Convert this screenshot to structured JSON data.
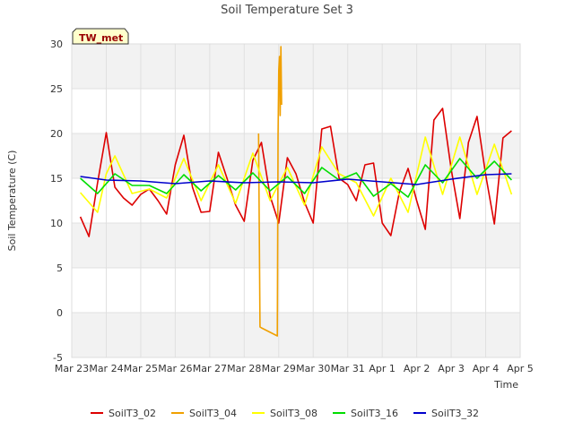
{
  "chart_data": {
    "type": "line",
    "title": "Soil Temperature Set 3",
    "xlabel": "Time",
    "ylabel": "Soil Temperature (C)",
    "ylim": [
      -5,
      30
    ],
    "yticks": [
      -5,
      0,
      5,
      10,
      15,
      20,
      25,
      30
    ],
    "xlim": [
      "2024-03-23",
      "2024-04-05"
    ],
    "xticks": [
      {
        "date": "2024-03-23",
        "label": "Mar 23"
      },
      {
        "date": "2024-03-24",
        "label": "Mar 24"
      },
      {
        "date": "2024-03-25",
        "label": "Mar 25"
      },
      {
        "date": "2024-03-26",
        "label": "Mar 26"
      },
      {
        "date": "2024-03-27",
        "label": "Mar 27"
      },
      {
        "date": "2024-03-28",
        "label": "Mar 28"
      },
      {
        "date": "2024-03-29",
        "label": "Mar 29"
      },
      {
        "date": "2024-03-30",
        "label": "Mar 30"
      },
      {
        "date": "2024-03-31",
        "label": "Mar 31"
      },
      {
        "date": "2024-04-01",
        "label": "Apr 1"
      },
      {
        "date": "2024-04-02",
        "label": "Apr 2"
      },
      {
        "date": "2024-04-03",
        "label": "Apr 3"
      },
      {
        "date": "2024-04-04",
        "label": "Apr 4"
      },
      {
        "date": "2024-04-05",
        "label": "Apr 5"
      }
    ],
    "grid": true,
    "banded_background": true,
    "legend_position": "bottom",
    "annotation": "TW_met",
    "series": [
      {
        "name": "SoilT3_02",
        "color": "#dd0000",
        "x": [
          "2024-03-23 06:00",
          "2024-03-23 12:00",
          "2024-03-23 18:00",
          "2024-03-24 00:00",
          "2024-03-24 03:00",
          "2024-03-24 06:00",
          "2024-03-24 12:00",
          "2024-03-24 18:00",
          "2024-03-25 00:00",
          "2024-03-25 06:00",
          "2024-03-25 12:00",
          "2024-03-25 18:00",
          "2024-03-26 00:00",
          "2024-03-26 06:00",
          "2024-03-26 12:00",
          "2024-03-26 18:00",
          "2024-03-27 00:00",
          "2024-03-27 06:00",
          "2024-03-27 12:00",
          "2024-03-27 18:00",
          "2024-03-28 00:00",
          "2024-03-28 06:00",
          "2024-03-28 12:00",
          "2024-03-28 18:00",
          "2024-03-29 00:00",
          "2024-03-29 06:00",
          "2024-03-29 12:00",
          "2024-03-29 18:00",
          "2024-03-30 00:00",
          "2024-03-30 06:00",
          "2024-03-30 12:00",
          "2024-03-30 18:00",
          "2024-03-31 00:00",
          "2024-03-31 06:00",
          "2024-03-31 12:00",
          "2024-03-31 18:00",
          "2024-04-01 00:00",
          "2024-04-01 06:00",
          "2024-04-01 12:00",
          "2024-04-01 18:00",
          "2024-04-02 00:00",
          "2024-04-02 06:00",
          "2024-04-02 12:00",
          "2024-04-02 18:00",
          "2024-04-03 00:00",
          "2024-04-03 06:00",
          "2024-04-03 12:00",
          "2024-04-03 18:00",
          "2024-04-04 00:00",
          "2024-04-04 06:00",
          "2024-04-04 12:00",
          "2024-04-04 18:00"
        ],
        "values": [
          10.7,
          8.5,
          14.5,
          20.1,
          17,
          14,
          12.8,
          12,
          13.2,
          13.8,
          12.5,
          11,
          16.5,
          19.8,
          14,
          11.2,
          11.3,
          17.9,
          15,
          12,
          10.2,
          17,
          19,
          13,
          10,
          17.3,
          15.5,
          12.3,
          10,
          20.5,
          20.8,
          15,
          14.3,
          12.5,
          16.5,
          16.7,
          10,
          8.6,
          13.5,
          16.1,
          12.5,
          9.3,
          21.5,
          22.8,
          16,
          10.5,
          19,
          21.9,
          15.4,
          9.9,
          19.5,
          20.3
        ]
      },
      {
        "name": "SoilT3_04",
        "color": "#f0a000",
        "x": [
          "2024-03-28 10:00",
          "2024-03-28 11:00",
          "2024-03-28 12:00",
          "2024-03-28 23:00",
          "2024-03-28 23:30",
          "2024-03-29 00:00",
          "2024-03-29 00:30",
          "2024-03-29 01:00",
          "2024-03-29 01:30",
          "2024-03-29 02:00"
        ],
        "values": [
          20,
          -1.6,
          -1.7,
          -2.6,
          19.6,
          27,
          28.6,
          22,
          29.7,
          23.2
        ]
      },
      {
        "name": "SoilT3_08",
        "color": "#ffff00",
        "x": [
          "2024-03-23 06:00",
          "2024-03-23 18:00",
          "2024-03-24 00:00",
          "2024-03-24 06:00",
          "2024-03-24 18:00",
          "2024-03-25 06:00",
          "2024-03-25 18:00",
          "2024-03-26 06:00",
          "2024-03-26 18:00",
          "2024-03-27 06:00",
          "2024-03-27 18:00",
          "2024-03-28 06:00",
          "2024-03-28 18:00",
          "2024-03-29 06:00",
          "2024-03-29 18:00",
          "2024-03-30 06:00",
          "2024-03-30 18:00",
          "2024-03-31 06:00",
          "2024-03-31 18:00",
          "2024-04-01 06:00",
          "2024-04-01 18:00",
          "2024-04-02 06:00",
          "2024-04-02 18:00",
          "2024-04-03 06:00",
          "2024-04-03 18:00",
          "2024-04-04 06:00",
          "2024-04-04 18:00"
        ],
        "values": [
          13.4,
          11.2,
          15.5,
          17.5,
          13.3,
          13.8,
          12.8,
          17.2,
          12.5,
          16.5,
          12.2,
          17.8,
          12.5,
          16.2,
          12,
          18.5,
          15.5,
          14.5,
          10.8,
          15,
          11.2,
          19.6,
          13.2,
          19.6,
          13.2,
          18.8,
          13.2
        ]
      },
      {
        "name": "SoilT3_16",
        "color": "#00dd00",
        "x": [
          "2024-03-23 06:00",
          "2024-03-23 18:00",
          "2024-03-24 06:00",
          "2024-03-24 18:00",
          "2024-03-25 06:00",
          "2024-03-25 18:00",
          "2024-03-26 06:00",
          "2024-03-26 18:00",
          "2024-03-27 06:00",
          "2024-03-27 18:00",
          "2024-03-28 06:00",
          "2024-03-28 18:00",
          "2024-03-29 06:00",
          "2024-03-29 18:00",
          "2024-03-30 06:00",
          "2024-03-30 18:00",
          "2024-03-31 06:00",
          "2024-03-31 18:00",
          "2024-04-01 06:00",
          "2024-04-01 18:00",
          "2024-04-02 06:00",
          "2024-04-02 18:00",
          "2024-04-03 06:00",
          "2024-04-03 18:00",
          "2024-04-04 06:00",
          "2024-04-04 18:00"
        ],
        "values": [
          15,
          13.3,
          15.5,
          14.2,
          14.2,
          13.3,
          15.4,
          13.6,
          15.3,
          13.7,
          15.6,
          13.6,
          15.2,
          13.3,
          16.2,
          14.8,
          15.6,
          13,
          14.4,
          12.9,
          16.5,
          14.5,
          17.2,
          15,
          16.9,
          14.8
        ]
      },
      {
        "name": "SoilT3_32",
        "color": "#0000cc",
        "x": [
          "2024-03-23 06:00",
          "2024-03-24 00:00",
          "2024-03-25 00:00",
          "2024-03-26 00:00",
          "2024-03-27 00:00",
          "2024-03-28 00:00",
          "2024-03-29 00:00",
          "2024-03-30 00:00",
          "2024-03-31 00:00",
          "2024-04-01 00:00",
          "2024-04-02 00:00",
          "2024-04-03 00:00",
          "2024-04-04 00:00",
          "2024-04-04 18:00"
        ],
        "values": [
          15.2,
          14.8,
          14.7,
          14.4,
          14.7,
          14.5,
          14.6,
          14.5,
          14.9,
          14.6,
          14.3,
          14.9,
          15.4,
          15.5
        ]
      }
    ]
  }
}
